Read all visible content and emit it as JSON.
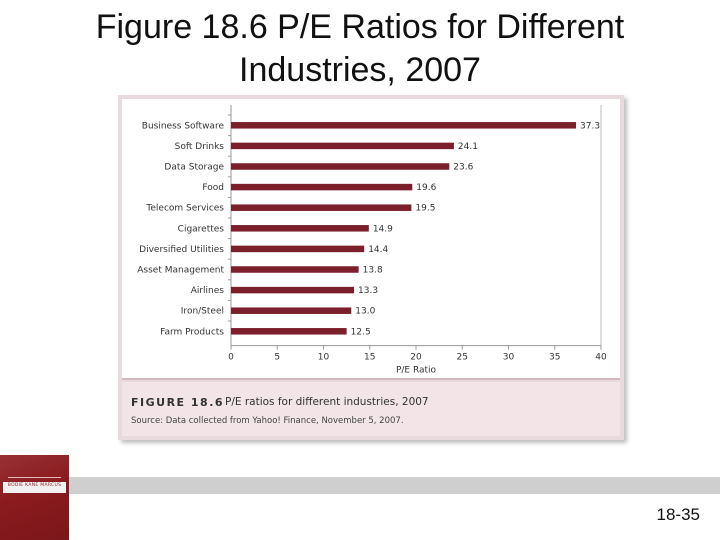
{
  "slide": {
    "title_line1": "Figure 18.6 P/E Ratios for Different",
    "title_line2": "Industries, 2007",
    "page_number": "18-35"
  },
  "caption": {
    "figure_label": "FIGURE 18.6",
    "text": "P/E ratios for different industries, 2007",
    "source": "Source: Data collected from Yahoo! Finance, November 5, 2007."
  },
  "logo": {
    "text": "BODIE KANE MARCUS"
  },
  "colors": {
    "bar": "#7b1f2a",
    "frame": "#e9dadd",
    "logo": "#8b1a1e"
  },
  "chart_data": {
    "type": "bar",
    "orientation": "horizontal",
    "categories": [
      "Business Software",
      "Soft Drinks",
      "Data Storage",
      "Food",
      "Telecom Services",
      "Cigarettes",
      "Diversified Utilities",
      "Asset Management",
      "Airlines",
      "Iron/Steel",
      "Farm Products"
    ],
    "values": [
      37.3,
      24.1,
      23.6,
      19.6,
      19.5,
      14.9,
      14.4,
      13.8,
      13.3,
      13.0,
      12.5
    ],
    "value_labels": [
      "37.3",
      "24.1",
      "23.6",
      "19.6",
      "19.5",
      "14.9",
      "14.4",
      "13.8",
      "13.3",
      "13.0",
      "12.5"
    ],
    "xlabel": "P/E Ratio",
    "xlim": [
      0,
      40
    ],
    "xticks": [
      0,
      5,
      10,
      15,
      20,
      25,
      30,
      35,
      40
    ],
    "grid": false
  }
}
